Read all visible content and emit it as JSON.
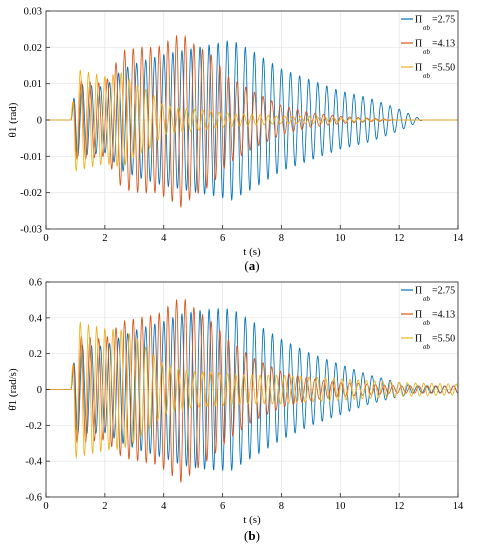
{
  "chart_data": [
    {
      "panel": "a",
      "type": "line",
      "caption_letter": "a",
      "xlabel": "t (s)",
      "ylabel": "θ1 (rad)",
      "xlim": [
        0,
        14
      ],
      "ylim": [
        -0.03,
        0.03
      ],
      "xticks": [
        "0",
        "2",
        "4",
        "6",
        "8",
        "10",
        "12",
        "14"
      ],
      "yticks": [
        "0.03",
        "0.02",
        "0.01",
        "0",
        "-0.01",
        "-0.02",
        "-0.03"
      ],
      "grid": true,
      "legend_position": "top-right",
      "series": [
        {
          "name": "Π",
          "sub": "σb",
          "value": "=2.75",
          "color": "#0072BD",
          "envelope": {
            "t": [
              0,
              0.85,
              1.0,
              2.0,
              2.6,
              3.2,
              4.0,
              4.6,
              5.2,
              5.8,
              6.3,
              7.0,
              8.0,
              9.0,
              10.0,
              11.0,
              12.0,
              12.8,
              14.0
            ],
            "amp": [
              0,
              0,
              0.01,
              0.009,
              0.014,
              0.016,
              0.018,
              0.019,
              0.02,
              0.021,
              0.022,
              0.019,
              0.014,
              0.011,
              0.008,
              0.006,
              0.003,
              0,
              0
            ]
          },
          "freq": 3.25
        },
        {
          "name": "Π",
          "sub": "σb",
          "value": "=4.13",
          "color": "#D95319",
          "envelope": {
            "t": [
              0,
              0.85,
              1.0,
              2.0,
              2.6,
              3.2,
              3.8,
              4.2,
              4.6,
              5.0,
              5.6,
              6.2,
              7.0,
              8.0,
              9.0,
              10.0,
              11.0,
              12.0,
              14.0
            ],
            "amp": [
              0,
              0,
              0.011,
              0.01,
              0.019,
              0.02,
              0.02,
              0.022,
              0.024,
              0.021,
              0.018,
              0.012,
              0.008,
              0.004,
              0.002,
              0.001,
              0.0005,
              0,
              0
            ]
          },
          "freq": 3.4
        },
        {
          "name": "Π",
          "sub": "σb",
          "value": "=5.50",
          "color": "#EDB120",
          "envelope": {
            "t": [
              0,
              0.85,
              1.0,
              2.0,
              2.6,
              3.0,
              3.5,
              4.0,
              5.0,
              6.0,
              7.0,
              8.0,
              9.0,
              10.0,
              11.0,
              12.0,
              14.0
            ],
            "amp": [
              0,
              0,
              0.014,
              0.012,
              0.013,
              0.01,
              0.008,
              0.004,
              0.003,
              0.002,
              0.0015,
              0.001,
              0.001,
              0.0005,
              0.0003,
              0,
              0
            ]
          },
          "freq": 3.6
        }
      ]
    },
    {
      "panel": "b",
      "type": "line",
      "caption_letter": "b",
      "xlabel": "t (s)",
      "ylabel": "θ̇1 (rad/s)",
      "xlim": [
        0,
        14
      ],
      "ylim": [
        -0.6,
        0.6
      ],
      "xticks": [
        "0",
        "2",
        "4",
        "6",
        "8",
        "10",
        "12",
        "14"
      ],
      "yticks": [
        "0.6",
        "0.4",
        "0.2",
        "0",
        "-0.2",
        "-0.4",
        "-0.6"
      ],
      "grid": true,
      "legend_position": "top-right",
      "series": [
        {
          "name": "Π",
          "sub": "σb",
          "value": "=2.75",
          "color": "#0072BD",
          "envelope": {
            "t": [
              0,
              0.85,
              1.0,
              2.0,
              2.6,
              3.2,
              4.0,
              4.6,
              5.2,
              5.8,
              6.3,
              7.0,
              8.0,
              9.0,
              10.0,
              11.0,
              12.0,
              12.5,
              14.0
            ],
            "amp": [
              0,
              0,
              0.25,
              0.24,
              0.3,
              0.34,
              0.38,
              0.42,
              0.44,
              0.45,
              0.45,
              0.38,
              0.28,
              0.2,
              0.14,
              0.08,
              0.04,
              0.02,
              0.02
            ]
          },
          "freq": 3.25
        },
        {
          "name": "Π",
          "sub": "σb",
          "value": "=4.13",
          "color": "#D95319",
          "envelope": {
            "t": [
              0,
              0.85,
              1.0,
              2.0,
              2.6,
              3.2,
              3.8,
              4.2,
              4.6,
              5.0,
              5.6,
              6.2,
              7.0,
              8.0,
              9.0,
              10.0,
              11.0,
              12.0,
              14.0
            ],
            "amp": [
              0,
              0,
              0.3,
              0.28,
              0.38,
              0.4,
              0.42,
              0.47,
              0.52,
              0.46,
              0.38,
              0.28,
              0.18,
              0.1,
              0.06,
              0.04,
              0.03,
              0.02,
              0.02
            ]
          },
          "freq": 3.4
        },
        {
          "name": "Π",
          "sub": "σb",
          "value": "=5.50",
          "color": "#EDB120",
          "envelope": {
            "t": [
              0,
              0.85,
              1.0,
              2.0,
              2.6,
              3.0,
              3.5,
              4.0,
              5.0,
              6.0,
              7.0,
              8.0,
              9.0,
              10.0,
              11.0,
              12.0,
              14.0
            ],
            "amp": [
              0,
              0,
              0.38,
              0.34,
              0.33,
              0.3,
              0.22,
              0.14,
              0.1,
              0.09,
              0.08,
              0.08,
              0.07,
              0.06,
              0.05,
              0.04,
              0.03
            ]
          },
          "freq": 3.6
        }
      ]
    }
  ]
}
